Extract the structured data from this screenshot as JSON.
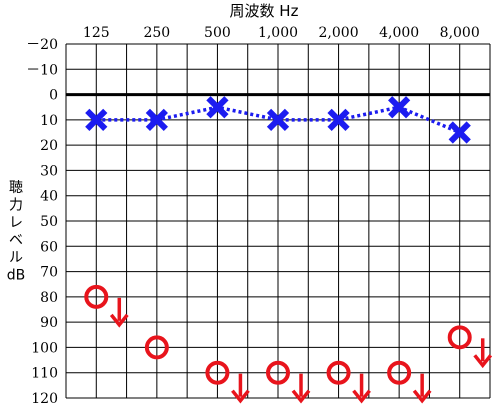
{
  "chart_data": {
    "type": "line",
    "title": "周波数 Hz",
    "xlabel": "周波数 Hz",
    "ylabel_lines": [
      "聴",
      "力",
      "レ",
      "ベ",
      "ル",
      "dB"
    ],
    "categories": [
      "125",
      "250",
      "500",
      "1,000",
      "2,000",
      "4,000",
      "8,000"
    ],
    "y_tick_labels": [
      "－20",
      "－10",
      "0",
      "10",
      "20",
      "30",
      "40",
      "50",
      "60",
      "70",
      "80",
      "90",
      "100",
      "110",
      "120"
    ],
    "y_ticks": [
      -20,
      -10,
      0,
      10,
      20,
      30,
      40,
      50,
      60,
      70,
      80,
      90,
      100,
      110,
      120
    ],
    "ylim": [
      -20,
      120
    ],
    "y_inverted": true,
    "grid": true,
    "reference_line_value": 0,
    "series": [
      {
        "marker": "cross",
        "line_style": "dotted",
        "color": "#1c1cf0",
        "values": [
          10,
          10,
          5,
          10,
          10,
          5,
          15
        ]
      },
      {
        "marker": "circle",
        "line_style": "none",
        "color": "#e8141c",
        "values": [
          80,
          100,
          110,
          110,
          110,
          110,
          96
        ],
        "scale_out_arrow": [
          true,
          false,
          true,
          true,
          true,
          true,
          true
        ]
      }
    ]
  }
}
